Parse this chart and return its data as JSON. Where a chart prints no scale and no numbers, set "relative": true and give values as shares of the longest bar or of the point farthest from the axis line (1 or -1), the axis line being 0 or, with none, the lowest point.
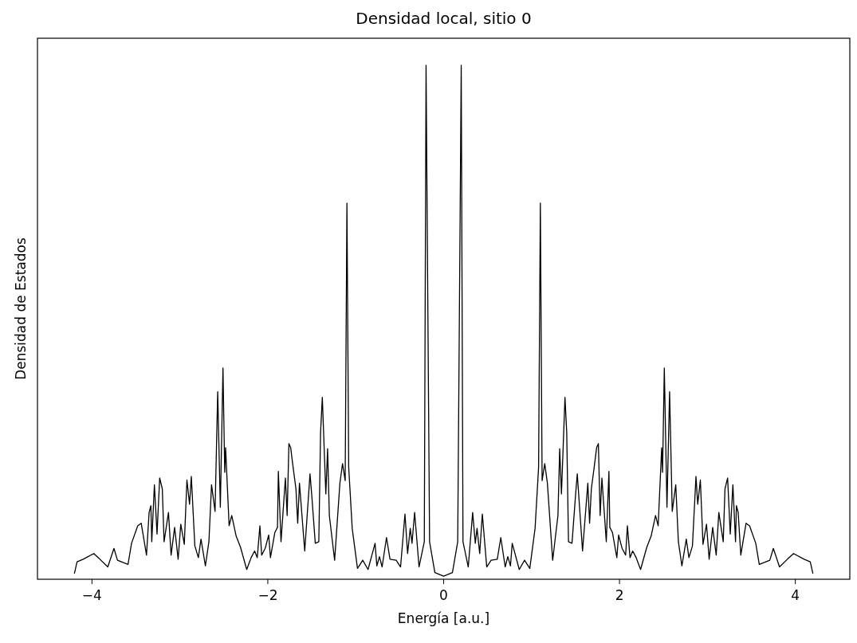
{
  "chart_data": {
    "type": "line",
    "title": "Densidad local, sitio 0",
    "xlabel": "Energía [a.u.]",
    "ylabel": "Densidad de Estados",
    "relative": true,
    "tick_labels": "x",
    "xlim": [
      -4.62,
      4.62
    ],
    "xticks": [
      {
        "value": -4,
        "label": "−4"
      },
      {
        "value": -2,
        "label": "−2"
      },
      0,
      2,
      4
    ],
    "x": [
      -4.2,
      -4.17,
      -4.1,
      -3.98,
      -3.91,
      -3.82,
      -3.75,
      -3.71,
      -3.59,
      -3.55,
      -3.48,
      -3.44,
      -3.38,
      -3.35,
      -3.33,
      -3.32,
      -3.29,
      -3.26,
      -3.23,
      -3.2,
      -3.18,
      -3.13,
      -3.1,
      -3.06,
      -3.02,
      -2.99,
      -2.95,
      -2.92,
      -2.89,
      -2.87,
      -2.83,
      -2.79,
      -2.76,
      -2.71,
      -2.67,
      -2.64,
      -2.6,
      -2.57,
      -2.54,
      -2.51,
      -2.49,
      -2.48,
      -2.44,
      -2.41,
      -2.36,
      -2.31,
      -2.24,
      -2.19,
      -2.15,
      -2.12,
      -2.09,
      -2.07,
      -2.03,
      -1.99,
      -1.97,
      -1.92,
      -1.89,
      -1.88,
      -1.85,
      -1.8,
      -1.78,
      -1.76,
      -1.74,
      -1.71,
      -1.68,
      -1.66,
      -1.64,
      -1.58,
      -1.52,
      -1.5,
      -1.46,
      -1.42,
      -1.4,
      -1.38,
      -1.34,
      -1.32,
      -1.3,
      -1.24,
      -1.18,
      -1.15,
      -1.12,
      -1.1,
      -1.08,
      -1.04,
      -0.98,
      -0.92,
      -0.86,
      -0.78,
      -0.76,
      -0.73,
      -0.7,
      -0.65,
      -0.61,
      -0.54,
      -0.49,
      -0.44,
      -0.41,
      -0.38,
      -0.36,
      -0.33,
      -0.28,
      -0.22,
      -0.2,
      -0.16,
      -0.1,
      0,
      0.1,
      0.16,
      0.2,
      0.22,
      0.28,
      0.33,
      0.36,
      0.38,
      0.41,
      0.44,
      0.49,
      0.54,
      0.61,
      0.65,
      0.7,
      0.73,
      0.76,
      0.78,
      0.86,
      0.92,
      0.98,
      1.04,
      1.08,
      1.1,
      1.12,
      1.15,
      1.18,
      1.24,
      1.3,
      1.32,
      1.34,
      1.38,
      1.4,
      1.42,
      1.46,
      1.5,
      1.52,
      1.58,
      1.64,
      1.66,
      1.68,
      1.71,
      1.74,
      1.76,
      1.78,
      1.8,
      1.85,
      1.88,
      1.89,
      1.92,
      1.97,
      1.99,
      2.03,
      2.07,
      2.09,
      2.12,
      2.15,
      2.19,
      2.24,
      2.31,
      2.36,
      2.41,
      2.44,
      2.48,
      2.49,
      2.51,
      2.54,
      2.57,
      2.6,
      2.64,
      2.67,
      2.71,
      2.76,
      2.79,
      2.83,
      2.87,
      2.89,
      2.92,
      2.95,
      2.99,
      3.02,
      3.06,
      3.1,
      3.13,
      3.18,
      3.2,
      3.23,
      3.26,
      3.29,
      3.32,
      3.33,
      3.35,
      3.38,
      3.44,
      3.48,
      3.55,
      3.59,
      3.71,
      3.75,
      3.82,
      3.91,
      3.98,
      4.1,
      4.17,
      4.2
    ],
    "series": [
      {
        "color": "#000000",
        "values": [
          0.011,
          0.034,
          0.039,
          0.05,
          0.039,
          0.024,
          0.06,
          0.037,
          0.029,
          0.07,
          0.104,
          0.109,
          0.047,
          0.13,
          0.143,
          0.073,
          0.184,
          0.088,
          0.197,
          0.176,
          0.073,
          0.13,
          0.047,
          0.101,
          0.039,
          0.107,
          0.068,
          0.193,
          0.146,
          0.2,
          0.065,
          0.042,
          0.078,
          0.026,
          0.073,
          0.184,
          0.132,
          0.365,
          0.14,
          0.411,
          0.208,
          0.256,
          0.104,
          0.124,
          0.084,
          0.062,
          0.019,
          0.042,
          0.055,
          0.042,
          0.104,
          0.047,
          0.06,
          0.086,
          0.042,
          0.091,
          0.101,
          0.21,
          0.073,
          0.197,
          0.124,
          0.264,
          0.256,
          0.215,
          0.176,
          0.109,
          0.187,
          0.055,
          0.205,
          0.163,
          0.07,
          0.073,
          0.285,
          0.354,
          0.166,
          0.254,
          0.124,
          0.037,
          0.187,
          0.225,
          0.192,
          0.732,
          0.218,
          0.099,
          0.021,
          0.037,
          0.019,
          0.07,
          0.026,
          0.044,
          0.024,
          0.081,
          0.039,
          0.037,
          0.024,
          0.127,
          0.05,
          0.099,
          0.07,
          0.13,
          0.024,
          0.073,
          1.0,
          0.073,
          0.013,
          0.006,
          0.013,
          0.073,
          1.0,
          0.073,
          0.024,
          0.13,
          0.07,
          0.099,
          0.05,
          0.127,
          0.024,
          0.037,
          0.039,
          0.081,
          0.024,
          0.044,
          0.026,
          0.07,
          0.019,
          0.037,
          0.021,
          0.099,
          0.218,
          0.732,
          0.192,
          0.225,
          0.187,
          0.037,
          0.124,
          0.254,
          0.166,
          0.354,
          0.285,
          0.073,
          0.07,
          0.163,
          0.205,
          0.055,
          0.187,
          0.109,
          0.176,
          0.215,
          0.256,
          0.264,
          0.124,
          0.197,
          0.073,
          0.21,
          0.101,
          0.091,
          0.042,
          0.086,
          0.06,
          0.047,
          0.104,
          0.042,
          0.055,
          0.042,
          0.019,
          0.062,
          0.084,
          0.124,
          0.104,
          0.256,
          0.208,
          0.411,
          0.14,
          0.365,
          0.132,
          0.184,
          0.073,
          0.026,
          0.078,
          0.042,
          0.065,
          0.2,
          0.146,
          0.193,
          0.068,
          0.107,
          0.039,
          0.101,
          0.047,
          0.13,
          0.073,
          0.176,
          0.197,
          0.088,
          0.184,
          0.073,
          0.143,
          0.13,
          0.047,
          0.109,
          0.104,
          0.07,
          0.029,
          0.037,
          0.06,
          0.024,
          0.039,
          0.05,
          0.039,
          0.034,
          0.011
        ]
      }
    ]
  }
}
